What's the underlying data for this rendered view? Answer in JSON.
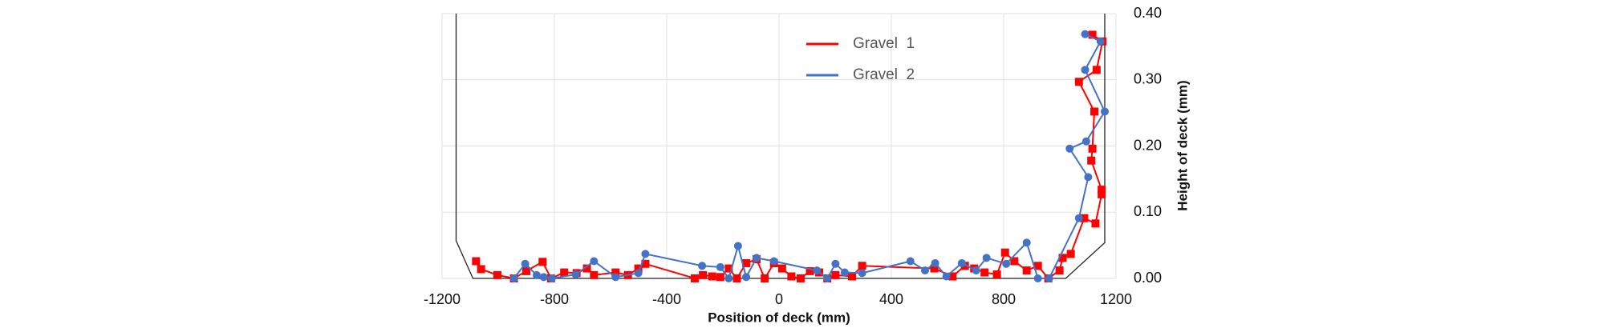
{
  "chart_data": {
    "type": "line",
    "x_label": "Position of deck (mm)",
    "y_label": "Height of deck (mm)",
    "xlim": [
      -1200,
      1200
    ],
    "ylim": [
      0,
      0.4
    ],
    "xticks": [
      -1200,
      -800,
      -400,
      0,
      400,
      800,
      1200
    ],
    "yticks": [
      {
        "value": 0,
        "label": "0.00"
      },
      {
        "value": 0.1,
        "label": "0.10"
      },
      {
        "value": 0.2,
        "label": "0.20"
      },
      {
        "value": 0.3,
        "label": "0.30"
      },
      {
        "value": 0.4,
        "label": "0.40"
      }
    ],
    "grid": true,
    "legend": "top",
    "outline": {
      "color": "#222222",
      "x": [
        -1150,
        -1150,
        -1090,
        1021,
        1160,
        1160
      ],
      "y": [
        0.4,
        0.057,
        0,
        0,
        0.054,
        0.4
      ]
    },
    "series": [
      {
        "name": "Gravel  1",
        "color": "#ff0000",
        "marker": "square",
        "x": [
          -1079,
          -1061,
          -1003,
          -944,
          -900,
          -842,
          -812,
          -765,
          -721,
          -684,
          -659,
          -582,
          -538,
          -501,
          -476,
          -300,
          -271,
          -238,
          -209,
          -179,
          -150,
          -117,
          -80,
          -51,
          -18,
          11,
          44,
          77,
          110,
          143,
          172,
          201,
          260,
          296,
          553,
          618,
          662,
          695,
          732,
          776,
          805,
          838,
          882,
          922,
          959,
          999,
          1010,
          1039,
          1087,
          1127,
          1149,
          1149,
          1112,
          1116,
          1123,
          1068,
          1131,
          1152,
          1116
        ],
        "values": [
          0.026,
          0.014,
          0.005,
          0,
          0.011,
          0.025,
          0,
          0.009,
          0.008,
          0.015,
          0.005,
          0.009,
          0.005,
          0.015,
          0.022,
          0,
          0.005,
          0.003,
          0.002,
          0.015,
          0,
          0.023,
          0.029,
          0,
          0.023,
          0.015,
          0.003,
          0,
          0.011,
          0.009,
          0,
          0.005,
          0.003,
          0.019,
          0.015,
          0.003,
          0.019,
          0.015,
          0.009,
          0.006,
          0.039,
          0.026,
          0.012,
          0.019,
          0,
          0.012,
          0.031,
          0.037,
          0.091,
          0.083,
          0.127,
          0.134,
          0.178,
          0.196,
          0.252,
          0.297,
          0.315,
          0.358,
          0.368
        ]
      },
      {
        "name": "Gravel  2",
        "color": "#4472c4",
        "marker": "circle",
        "x": [
          -944,
          -904,
          -863,
          -838,
          -809,
          -724,
          -659,
          -582,
          -501,
          -476,
          -274,
          -209,
          -179,
          -146,
          -117,
          -80,
          -18,
          135,
          172,
          201,
          234,
          296,
          468,
          520,
          556,
          596,
          651,
          702,
          739,
          809,
          882,
          922,
          962,
          1068,
          1101,
          1035,
          1094,
          1160,
          1090,
          1145,
          1090
        ],
        "values": [
          0,
          0.022,
          0.005,
          0.002,
          0,
          0.006,
          0.026,
          0.002,
          0.008,
          0.037,
          0.019,
          0.017,
          0,
          0.049,
          0.002,
          0.031,
          0.026,
          0.012,
          0,
          0.022,
          0.009,
          0.008,
          0.026,
          0.012,
          0.023,
          0.003,
          0.023,
          0.012,
          0.031,
          0.022,
          0.054,
          0,
          0,
          0.091,
          0.153,
          0.196,
          0.207,
          0.252,
          0.315,
          0.358,
          0.369
        ]
      }
    ]
  }
}
